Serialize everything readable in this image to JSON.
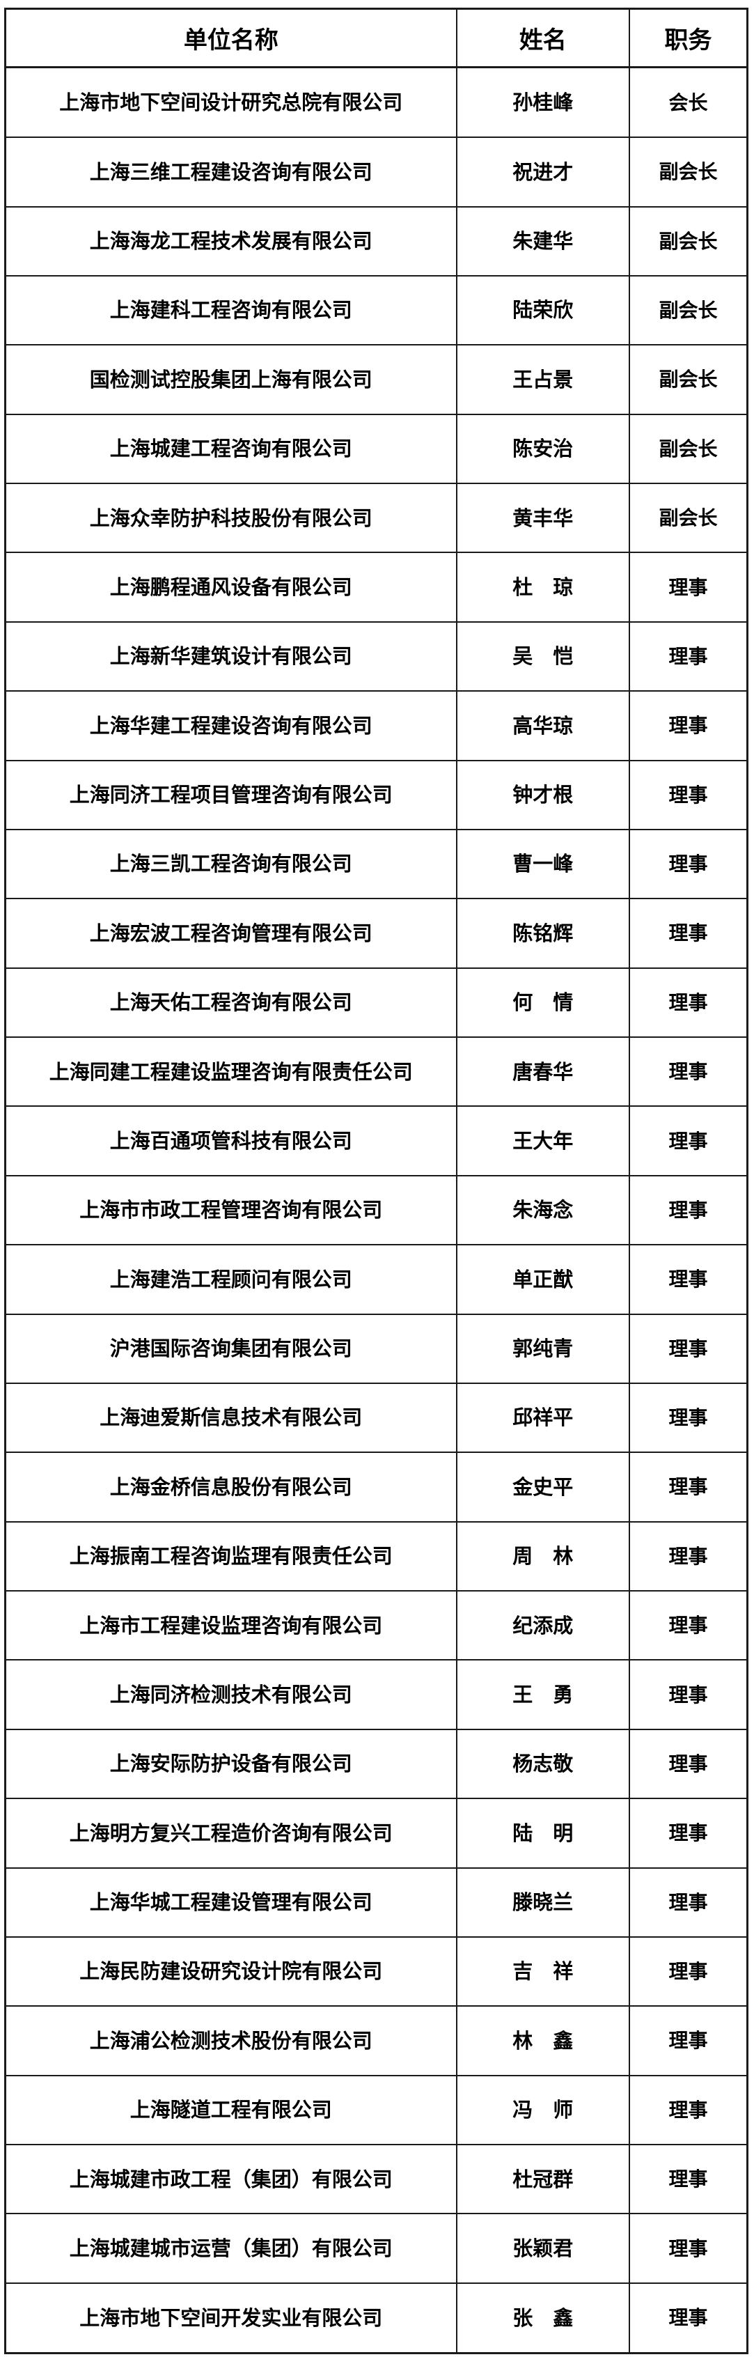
{
  "palette": {
    "border": "#1a1a1a",
    "text": "#000000",
    "background": "#ffffff"
  },
  "table": {
    "headers": [
      "单位名称",
      "姓名",
      "职务"
    ],
    "rows": [
      {
        "company": "上海市地下空间设计研究总院有限公司",
        "name": "孙桂峰",
        "position": "会长"
      },
      {
        "company": "上海三维工程建设咨询有限公司",
        "name": "祝进才",
        "position": "副会长"
      },
      {
        "company": "上海海龙工程技术发展有限公司",
        "name": "朱建华",
        "position": "副会长"
      },
      {
        "company": "上海建科工程咨询有限公司",
        "name": "陆荣欣",
        "position": "副会长"
      },
      {
        "company": "国检测试控股集团上海有限公司",
        "name": "王占景",
        "position": "副会长"
      },
      {
        "company": "上海城建工程咨询有限公司",
        "name": "陈安治",
        "position": "副会长"
      },
      {
        "company": "上海众幸防护科技股份有限公司",
        "name": "黄丰华",
        "position": "副会长"
      },
      {
        "company": "上海鹏程通风设备有限公司",
        "name": "杜　琼",
        "position": "理事"
      },
      {
        "company": "上海新华建筑设计有限公司",
        "name": "吴　恺",
        "position": "理事"
      },
      {
        "company": "上海华建工程建设咨询有限公司",
        "name": "高华琼",
        "position": "理事"
      },
      {
        "company": "上海同济工程项目管理咨询有限公司",
        "name": "钟才根",
        "position": "理事"
      },
      {
        "company": "上海三凯工程咨询有限公司",
        "name": "曹一峰",
        "position": "理事"
      },
      {
        "company": "上海宏波工程咨询管理有限公司",
        "name": "陈铭辉",
        "position": "理事"
      },
      {
        "company": "上海天佑工程咨询有限公司",
        "name": "何　情",
        "position": "理事"
      },
      {
        "company": "上海同建工程建设监理咨询有限责任公司",
        "name": "唐春华",
        "position": "理事"
      },
      {
        "company": "上海百通项管科技有限公司",
        "name": "王大年",
        "position": "理事"
      },
      {
        "company": "上海市市政工程管理咨询有限公司",
        "name": "朱海念",
        "position": "理事"
      },
      {
        "company": "上海建浩工程顾问有限公司",
        "name": "单正猷",
        "position": "理事"
      },
      {
        "company": "沪港国际咨询集团有限公司",
        "name": "郭纯青",
        "position": "理事"
      },
      {
        "company": "上海迪爱斯信息技术有限公司",
        "name": "邱祥平",
        "position": "理事"
      },
      {
        "company": "上海金桥信息股份有限公司",
        "name": "金史平",
        "position": "理事"
      },
      {
        "company": "上海振南工程咨询监理有限责任公司",
        "name": "周　林",
        "position": "理事"
      },
      {
        "company": "上海市工程建设监理咨询有限公司",
        "name": "纪添成",
        "position": "理事"
      },
      {
        "company": "上海同济检测技术有限公司",
        "name": "王　勇",
        "position": "理事"
      },
      {
        "company": "上海安际防护设备有限公司",
        "name": "杨志敬",
        "position": "理事"
      },
      {
        "company": "上海明方复兴工程造价咨询有限公司",
        "name": "陆　明",
        "position": "理事"
      },
      {
        "company": "上海华城工程建设管理有限公司",
        "name": "滕晓兰",
        "position": "理事"
      },
      {
        "company": "上海民防建设研究设计院有限公司",
        "name": "吉　祥",
        "position": "理事"
      },
      {
        "company": "上海浦公检测技术股份有限公司",
        "name": "林　鑫",
        "position": "理事"
      },
      {
        "company": "上海隧道工程有限公司",
        "name": "冯　师",
        "position": "理事"
      },
      {
        "company": "上海城建市政工程（集团）有限公司",
        "name": "杜冠群",
        "position": "理事"
      },
      {
        "company": "上海城建城市运营（集团）有限公司",
        "name": "张颖君",
        "position": "理事"
      },
      {
        "company": "上海市地下空间开发实业有限公司",
        "name": "张　鑫",
        "position": "理事"
      }
    ]
  }
}
